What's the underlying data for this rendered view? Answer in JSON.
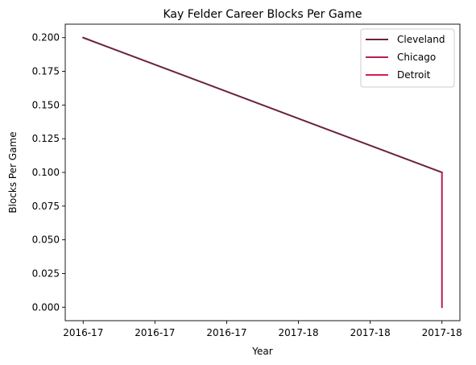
{
  "chart_data": {
    "type": "line",
    "title": "Kay Felder Career Blocks Per Game",
    "xlabel": "Year",
    "ylabel": "Blocks Per Game",
    "x_tick_labels": [
      "2016-17",
      "2016-17",
      "2016-17",
      "2017-18",
      "2017-18",
      "2017-18"
    ],
    "y_tick_labels": [
      "0.000",
      "0.025",
      "0.050",
      "0.075",
      "0.100",
      "0.125",
      "0.150",
      "0.175",
      "0.200"
    ],
    "y_ticks": [
      0.0,
      0.025,
      0.05,
      0.075,
      0.1,
      0.125,
      0.15,
      0.175,
      0.2
    ],
    "ylim": [
      -0.01,
      0.21
    ],
    "xlim": [
      -0.05,
      1.05
    ],
    "grid": false,
    "legend_position": "top-right",
    "series": [
      {
        "name": "Cleveland",
        "color": "#6b2142",
        "points": [
          {
            "x": 0.0,
            "y": 0.2
          },
          {
            "x": 1.0,
            "y": 0.1
          }
        ]
      },
      {
        "name": "Chicago",
        "color": "#ba1d52",
        "points": [
          {
            "x": 1.0,
            "y": 0.1
          },
          {
            "x": 1.0,
            "y": 0.0
          }
        ]
      },
      {
        "name": "Detroit",
        "color": "#d61e50",
        "points": [
          {
            "x": 1.0,
            "y": 0.0
          }
        ]
      }
    ]
  }
}
